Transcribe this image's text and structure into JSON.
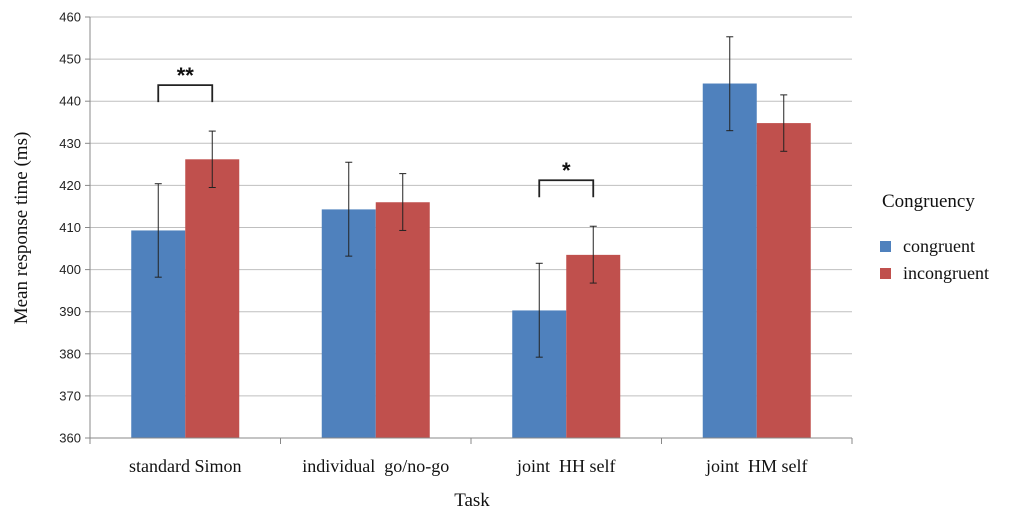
{
  "chart_data": {
    "type": "bar",
    "xlabel": "Task",
    "ylabel": "Mean response time (ms)",
    "ylim": [
      360,
      460
    ],
    "yticks": [
      360,
      370,
      380,
      390,
      400,
      410,
      420,
      430,
      440,
      450,
      460
    ],
    "grid": true,
    "categories": [
      "standard Simon",
      "individual  go/no-go",
      "joint  HH self",
      "joint  HM self"
    ],
    "legend": {
      "title": "Congruency",
      "placement": "right"
    },
    "series": [
      {
        "name": "congruent",
        "color": "#4F81BD",
        "values": [
          409.3,
          414.3,
          390.3,
          444.2
        ],
        "error_low": [
          398.2,
          403.2,
          379.2,
          433.0
        ],
        "error_high": [
          420.4,
          425.5,
          401.5,
          455.3
        ]
      },
      {
        "name": "incongruent",
        "color": "#C0504D",
        "values": [
          426.2,
          416.0,
          403.5,
          434.8
        ],
        "error_low": [
          419.5,
          409.3,
          396.8,
          428.1
        ],
        "error_high": [
          432.9,
          422.8,
          410.3,
          441.5
        ]
      }
    ],
    "annotations": [
      {
        "text": "**",
        "category_index": 0
      },
      {
        "text": "*",
        "category_index": 2
      }
    ]
  }
}
